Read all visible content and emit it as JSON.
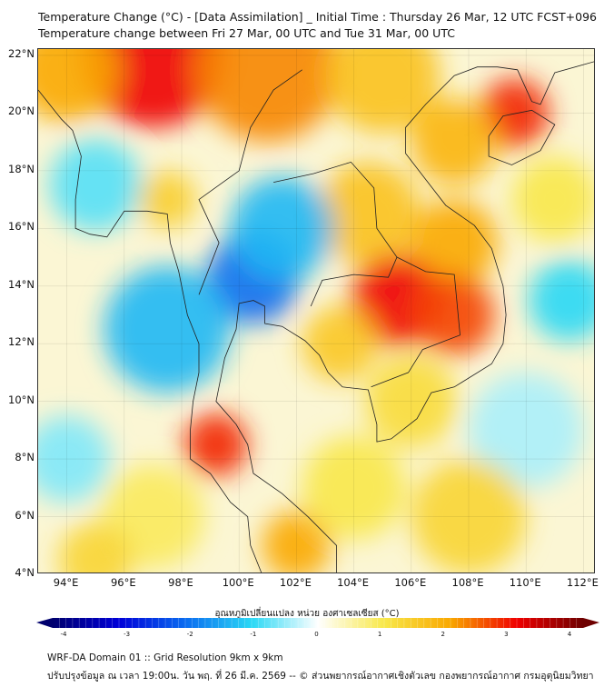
{
  "header": {
    "title_line1": "Temperature Change (°C) - [Data Assimilation] _ Initial Time : Thursday 26 Mar, 12 UTC FCST+096",
    "title_line2": "Temperature change between Fri 27 Mar, 00 UTC and Tue 31 Mar, 00 UTC"
  },
  "map": {
    "lon_range": [
      93,
      112.43
    ],
    "lat_range": [
      4,
      22.22
    ],
    "lat_ticks": [
      "22°N",
      "20°N",
      "18°N",
      "16°N",
      "14°N",
      "12°N",
      "10°N",
      "8°N",
      "6°N",
      "4°N"
    ],
    "lat_values": [
      22,
      20,
      18,
      16,
      14,
      12,
      10,
      8,
      6,
      4
    ],
    "lon_ticks": [
      "94°E",
      "96°E",
      "98°E",
      "100°E",
      "102°E",
      "104°E",
      "106°E",
      "108°E",
      "110°E",
      "112°E"
    ],
    "lon_values": [
      94,
      96,
      98,
      100,
      102,
      104,
      106,
      108,
      110,
      112
    ],
    "field_blobs": [
      {
        "lon": 97,
        "lat": 22,
        "v": 3.0,
        "r": 2.5
      },
      {
        "lon": 101,
        "lat": 21.5,
        "v": 2.2,
        "r": 2.5
      },
      {
        "lon": 94,
        "lat": 21.5,
        "v": 2.0,
        "r": 1.8
      },
      {
        "lon": 105,
        "lat": 21.3,
        "v": 1.6,
        "r": 2
      },
      {
        "lon": 109.6,
        "lat": 20,
        "v": 2.8,
        "r": 1.2
      },
      {
        "lon": 107.5,
        "lat": 19,
        "v": 1.8,
        "r": 1.5
      },
      {
        "lon": 104.5,
        "lat": 16.5,
        "v": 1.6,
        "r": 1.8
      },
      {
        "lon": 107.5,
        "lat": 15.5,
        "v": 2.0,
        "r": 1.5
      },
      {
        "lon": 105.5,
        "lat": 13.5,
        "v": 3.0,
        "r": 1.6
      },
      {
        "lon": 107.5,
        "lat": 13,
        "v": 2.6,
        "r": 1.4
      },
      {
        "lon": 103.5,
        "lat": 12,
        "v": 1.5,
        "r": 1.3
      },
      {
        "lon": 106,
        "lat": 10,
        "v": 1.2,
        "r": 1.6
      },
      {
        "lon": 100.5,
        "lat": 14.3,
        "v": -2.0,
        "r": 1.6
      },
      {
        "lon": 101.5,
        "lat": 16,
        "v": -1.3,
        "r": 1.8
      },
      {
        "lon": 97.5,
        "lat": 12.5,
        "v": -1.3,
        "r": 2.2
      },
      {
        "lon": 95,
        "lat": 17.5,
        "v": -0.8,
        "r": 1.6
      },
      {
        "lon": 111.5,
        "lat": 13.5,
        "v": -1.0,
        "r": 1.4
      },
      {
        "lon": 110,
        "lat": 9,
        "v": -0.4,
        "r": 2
      },
      {
        "lon": 99.2,
        "lat": 8.5,
        "v": 2.8,
        "r": 1.1
      },
      {
        "lon": 102,
        "lat": 5,
        "v": 2.0,
        "r": 1.2
      },
      {
        "lon": 94,
        "lat": 8,
        "v": -0.6,
        "r": 1.5
      },
      {
        "lon": 97,
        "lat": 6,
        "v": 0.9,
        "r": 1.8
      },
      {
        "lon": 95,
        "lat": 4.5,
        "v": 1.3,
        "r": 1.3
      },
      {
        "lon": 104,
        "lat": 7,
        "v": 1.0,
        "r": 1.8
      },
      {
        "lon": 108,
        "lat": 6,
        "v": 1.3,
        "r": 2
      },
      {
        "lon": 111,
        "lat": 17,
        "v": 1.0,
        "r": 1.5
      },
      {
        "lon": 97.5,
        "lat": 17,
        "v": 1.4,
        "r": 1.0
      }
    ]
  },
  "colorbar": {
    "title": "อุณหภูมิเปลี่ยนแปลง หน่วย องศาเซลเซียส (°C)",
    "ticks": [
      "-4",
      "-3",
      "-2",
      "-1",
      "0",
      "1",
      "2",
      "3",
      "4"
    ],
    "tick_values": [
      -4,
      -3,
      -2,
      -1,
      0,
      1,
      2,
      3,
      4
    ],
    "colors": [
      "#00006e",
      "#0000d8",
      "#0a6cf0",
      "#2ad8f5",
      "#ffffff",
      "#f8e84a",
      "#f9a800",
      "#f00000",
      "#6e0000"
    ]
  },
  "footer": {
    "line1": "WRF-DA Domain 01 :: Grid Resolution 9km x 9km",
    "line2": "ปรับปรุงข้อมูล ณ เวลา 19:00น. วัน พฤ. ที่ 26 มี.ค. 2569 -- © ส่วนพยากรณ์อากาศเชิงตัวเลข กองพยากรณ์อากาศ กรมอุตุนิยมวิทยา"
  }
}
